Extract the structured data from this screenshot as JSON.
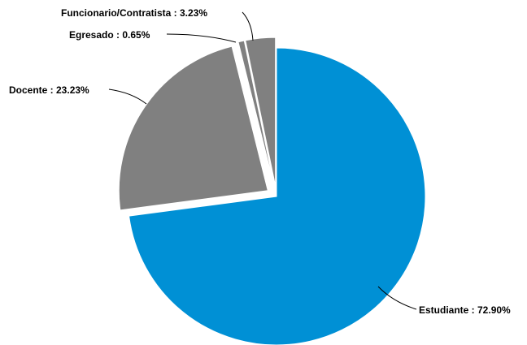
{
  "chart_data": {
    "type": "pie",
    "slices": [
      {
        "name": "Estudiante",
        "label": "Estudiante : 72.90%",
        "value": 72.9,
        "color": "#0090d5",
        "exploded": false
      },
      {
        "name": "Docente",
        "label": "Docente : 23.23%",
        "value": 23.23,
        "color": "#808080",
        "exploded": true
      },
      {
        "name": "Egresado",
        "label": "Egresado : 0.65%",
        "value": 0.65,
        "color": "#808080",
        "exploded": true
      },
      {
        "name": "Funcionario/Contratista",
        "label": "Funcionario/Contratista : 3.23%",
        "value": 3.23,
        "color": "#808080",
        "exploded": true
      }
    ],
    "start_angle": "12 o'clock",
    "direction": "clockwise",
    "legend": "none",
    "labels": "outside with leader lines"
  }
}
